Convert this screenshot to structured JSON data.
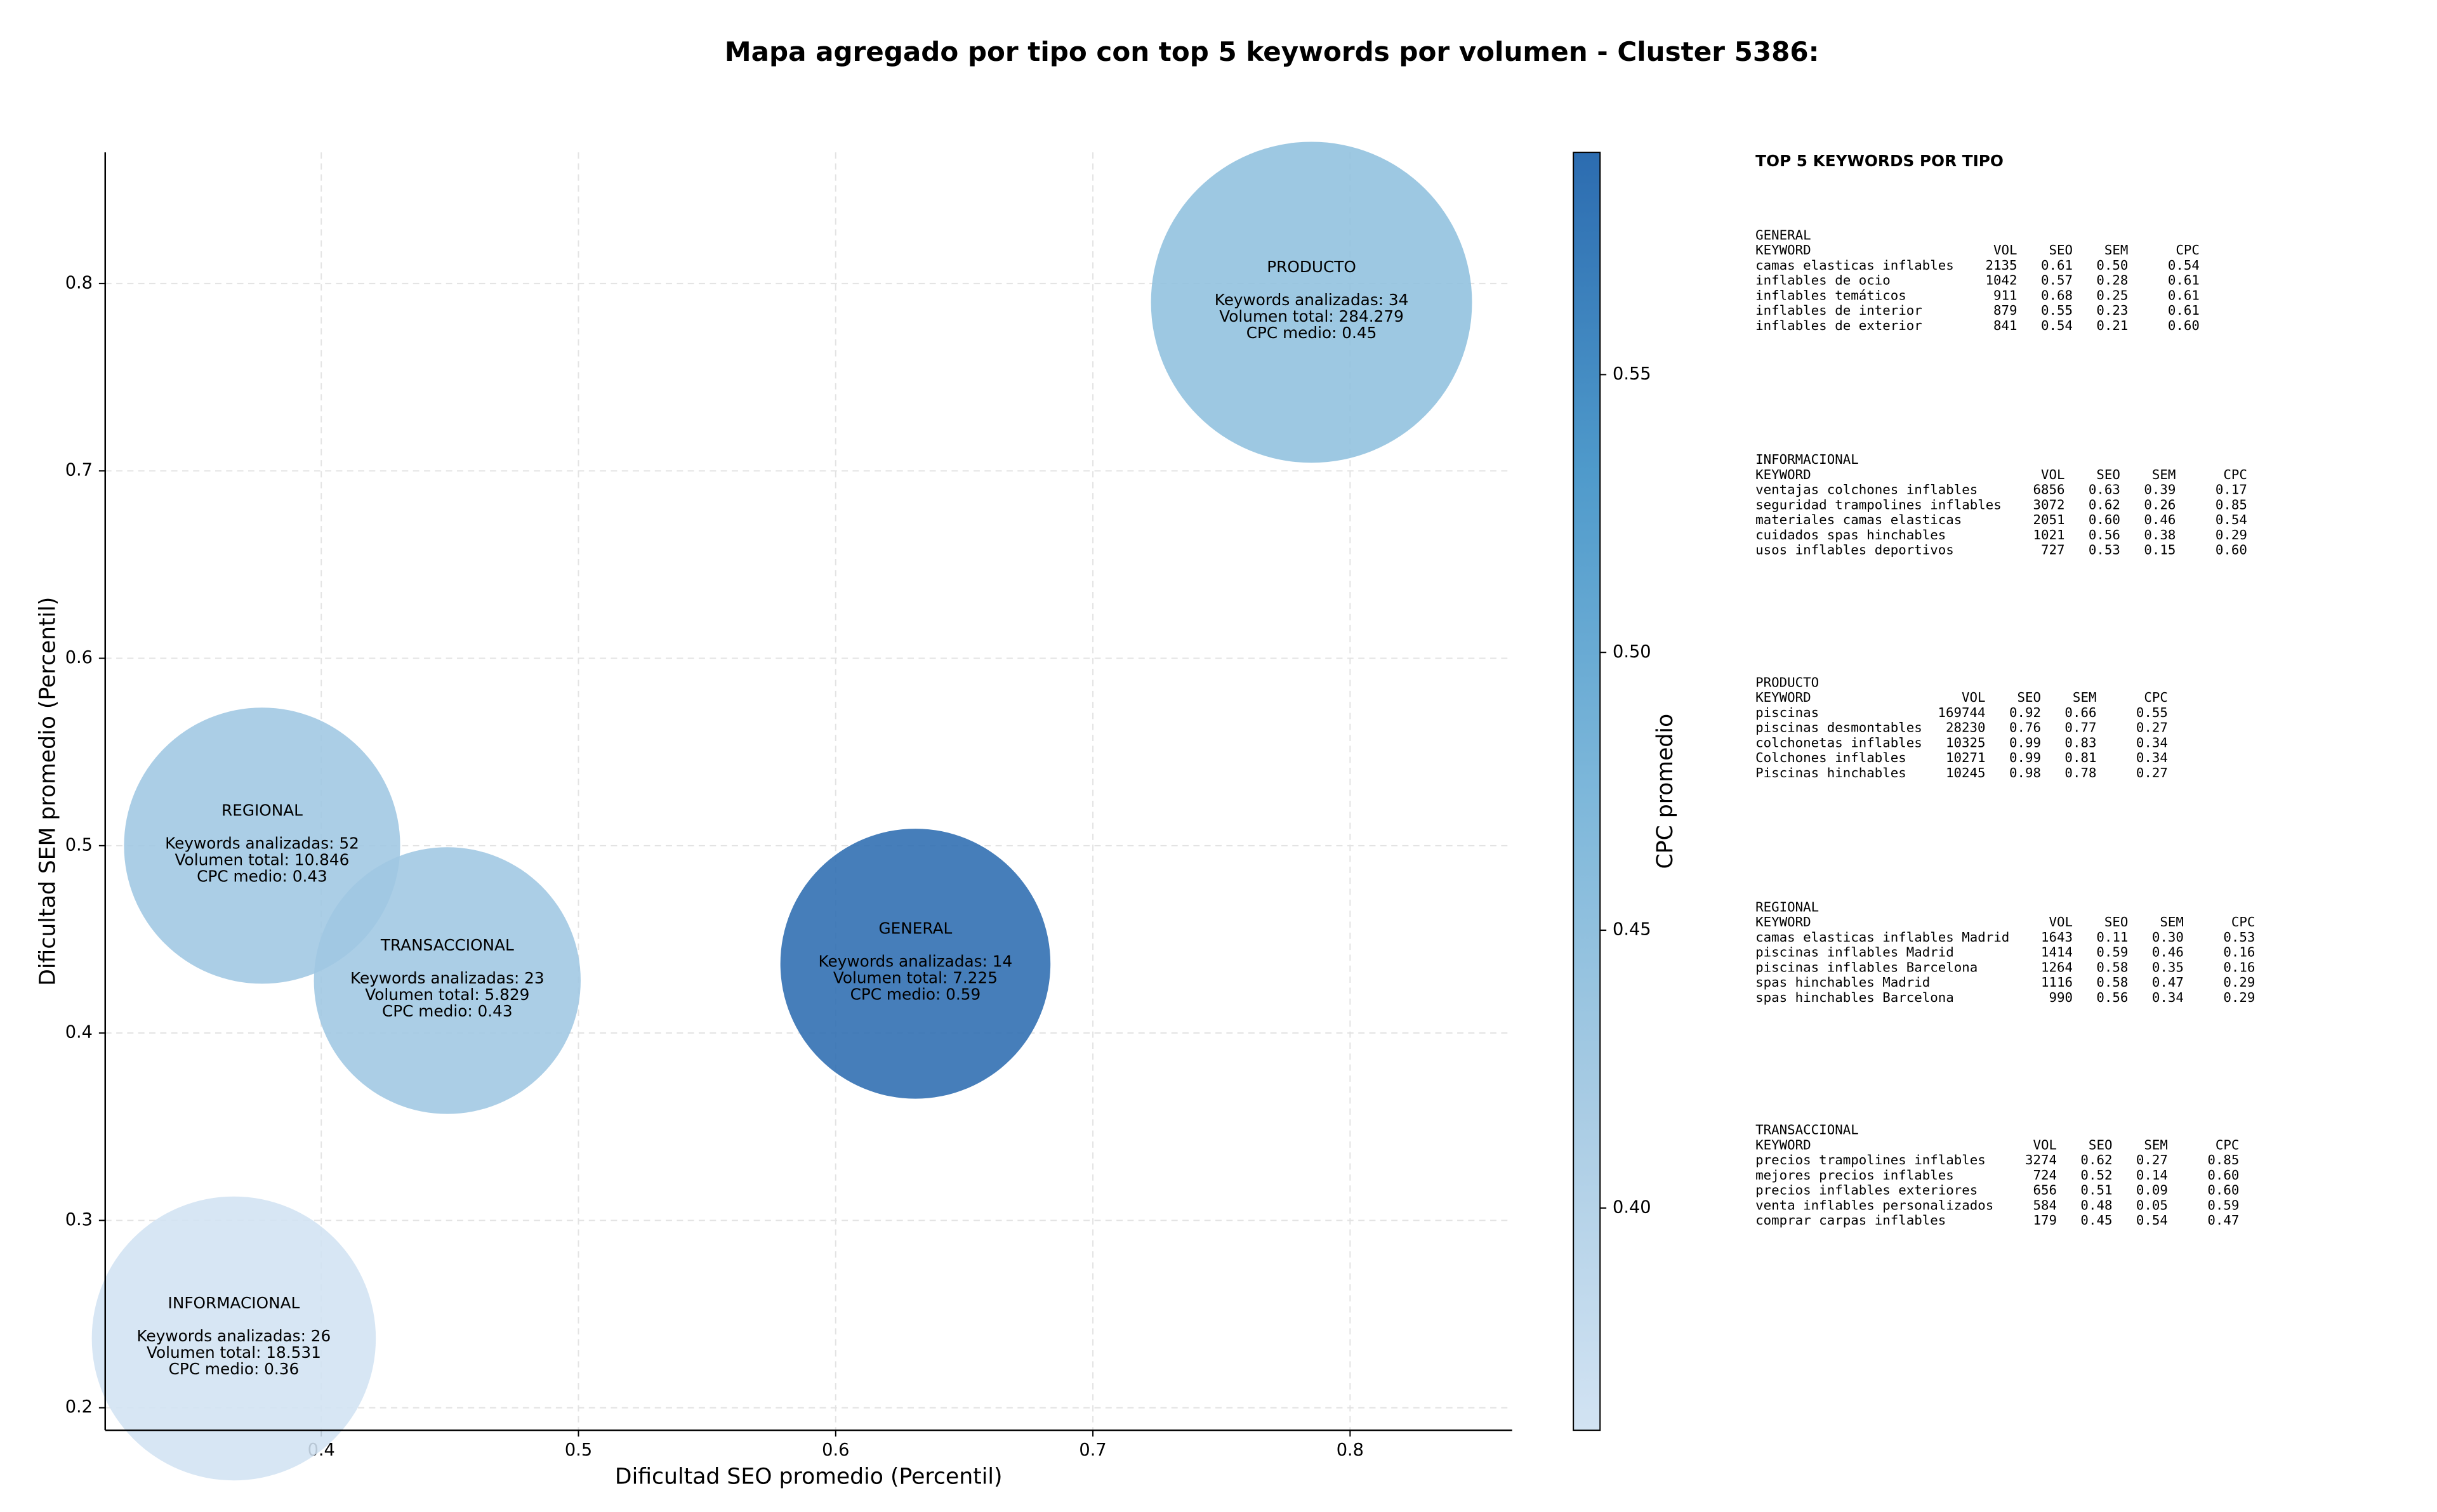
{
  "chart_data": {
    "type": "scatter",
    "title": "Mapa agregado por tipo con top 5 keywords por volumen - Cluster 5386:",
    "xlabel": "Dificultad SEO promedio (Percentil)",
    "ylabel": "Dificultad SEM promedio (Percentil)",
    "colorbar_label": "CPC promedio",
    "xlim": [
      0.316,
      0.863
    ],
    "ylim": [
      0.188,
      0.87
    ],
    "xticks": [
      0.4,
      0.5,
      0.6,
      0.7,
      0.8
    ],
    "yticks": [
      0.2,
      0.3,
      0.4,
      0.5,
      0.6,
      0.7,
      0.8
    ],
    "clim": [
      0.36,
      0.59
    ],
    "cticks": [
      {
        "value": 0.4,
        "label": "0.40"
      },
      {
        "value": 0.45,
        "label": "0.45"
      },
      {
        "value": 0.5,
        "label": "0.50"
      },
      {
        "value": 0.55,
        "label": "0.55"
      }
    ],
    "colormap": [
      "#d2e3f3",
      "#a9cce4",
      "#7db7da",
      "#4f9acb",
      "#2c6cb0"
    ],
    "grid": true,
    "points": [
      {
        "name": "PRODUCTO",
        "x": 0.785,
        "y": 0.79,
        "size": 284279,
        "color_value": 0.45,
        "label_lines": [
          "Keywords analizadas: 34",
          "Volumen total: 284.279",
          "CPC medio: 0.45"
        ]
      },
      {
        "name": "REGIONAL",
        "x": 0.377,
        "y": 0.5,
        "size": 10846,
        "color_value": 0.43,
        "label_lines": [
          "Keywords analizadas: 52",
          "Volumen total: 10.846",
          "CPC medio: 0.43"
        ]
      },
      {
        "name": "TRANSACCIONAL",
        "x": 0.449,
        "y": 0.428,
        "size": 5829,
        "color_value": 0.43,
        "label_lines": [
          "Keywords analizadas: 23",
          "Volumen total: 5.829",
          "CPC medio: 0.43"
        ]
      },
      {
        "name": "GENERAL",
        "x": 0.631,
        "y": 0.437,
        "size": 7225,
        "color_value": 0.59,
        "label_lines": [
          "Keywords analizadas: 14",
          "Volumen total: 7.225",
          "CPC medio: 0.59"
        ]
      },
      {
        "name": "INFORMACIONAL",
        "x": 0.366,
        "y": 0.237,
        "size": 18531,
        "color_value": 0.36,
        "label_lines": [
          "Keywords analizadas: 26",
          "Volumen total: 18.531",
          "CPC medio: 0.36"
        ]
      }
    ]
  },
  "side_panel": {
    "title": "TOP 5 KEYWORDS POR TIPO",
    "header": [
      "KEYWORD",
      "VOL",
      "SEO",
      "SEM",
      "CPC"
    ],
    "tables": [
      {
        "title": "GENERAL",
        "rows": [
          [
            "camas elasticas inflables",
            "2135",
            "0.61",
            "0.50",
            "0.54"
          ],
          [
            "inflables de ocio",
            "1042",
            "0.57",
            "0.28",
            "0.61"
          ],
          [
            "inflables temáticos",
            "911",
            "0.68",
            "0.25",
            "0.61"
          ],
          [
            "inflables de interior",
            "879",
            "0.55",
            "0.23",
            "0.61"
          ],
          [
            "inflables de exterior",
            "841",
            "0.54",
            "0.21",
            "0.60"
          ]
        ]
      },
      {
        "title": "INFORMACIONAL",
        "rows": [
          [
            "ventajas colchones inflables",
            "6856",
            "0.63",
            "0.39",
            "0.17"
          ],
          [
            "seguridad trampolines inflables",
            "3072",
            "0.62",
            "0.26",
            "0.85"
          ],
          [
            "materiales camas elasticas",
            "2051",
            "0.60",
            "0.46",
            "0.54"
          ],
          [
            "cuidados spas hinchables",
            "1021",
            "0.56",
            "0.38",
            "0.29"
          ],
          [
            "usos inflables deportivos",
            "727",
            "0.53",
            "0.15",
            "0.60"
          ]
        ]
      },
      {
        "title": "PRODUCTO",
        "rows": [
          [
            "piscinas",
            "169744",
            "0.92",
            "0.66",
            "0.55"
          ],
          [
            "piscinas desmontables",
            "28230",
            "0.76",
            "0.77",
            "0.27"
          ],
          [
            "colchonetas inflables",
            "10325",
            "0.99",
            "0.83",
            "0.34"
          ],
          [
            "Colchones inflables",
            "10271",
            "0.99",
            "0.81",
            "0.34"
          ],
          [
            "Piscinas hinchables",
            "10245",
            "0.98",
            "0.78",
            "0.27"
          ]
        ]
      },
      {
        "title": "REGIONAL",
        "rows": [
          [
            "camas elasticas inflables Madrid",
            "1643",
            "0.11",
            "0.30",
            "0.53"
          ],
          [
            "piscinas inflables Madrid",
            "1414",
            "0.59",
            "0.46",
            "0.16"
          ],
          [
            "piscinas inflables Barcelona",
            "1264",
            "0.58",
            "0.35",
            "0.16"
          ],
          [
            "spas hinchables Madrid",
            "1116",
            "0.58",
            "0.47",
            "0.29"
          ],
          [
            "spas hinchables Barcelona",
            "990",
            "0.56",
            "0.34",
            "0.29"
          ]
        ]
      },
      {
        "title": "TRANSACCIONAL",
        "rows": [
          [
            "precios trampolines inflables",
            "3274",
            "0.62",
            "0.27",
            "0.85"
          ],
          [
            "mejores precios inflables",
            "724",
            "0.52",
            "0.14",
            "0.60"
          ],
          [
            "precios inflables exteriores",
            "656",
            "0.51",
            "0.09",
            "0.60"
          ],
          [
            "venta inflables personalizados",
            "584",
            "0.48",
            "0.05",
            "0.59"
          ],
          [
            "comprar carpas inflables",
            "179",
            "0.45",
            "0.54",
            "0.47"
          ]
        ]
      }
    ]
  }
}
